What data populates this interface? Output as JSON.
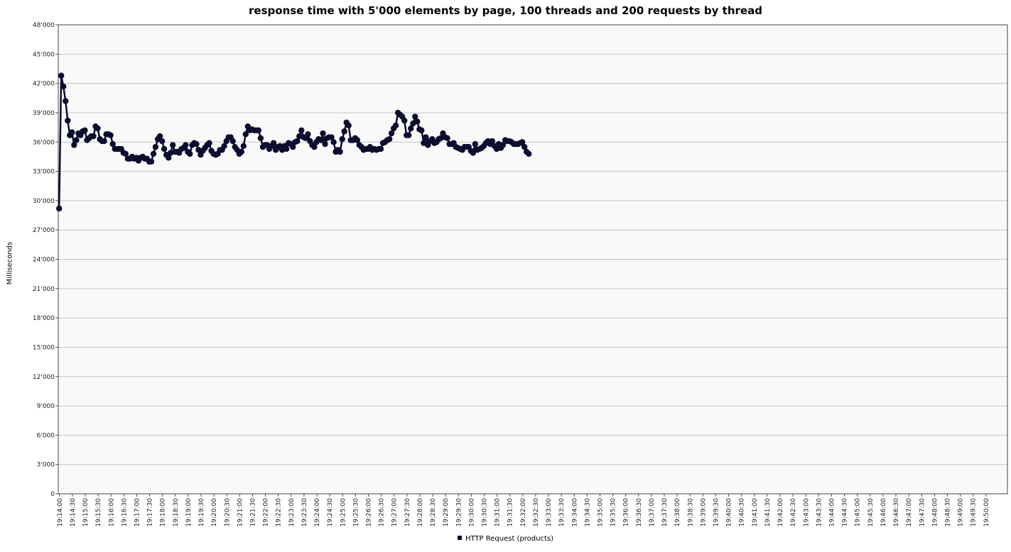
{
  "chart_data": {
    "type": "line",
    "title": "response time with 5'000 elements by page, 100 threads and 200 requests by thread",
    "xlabel": "",
    "ylabel": "Milliseconds",
    "ylim": [
      0,
      48000
    ],
    "y_ticks": [
      "0",
      "3'000",
      "6'000",
      "9'000",
      "12'000",
      "15'000",
      "18'000",
      "21'000",
      "24'000",
      "27'000",
      "30'000",
      "33'000",
      "36'000",
      "39'000",
      "42'000",
      "45'000",
      "48'000"
    ],
    "x_ticks": [
      "19:14:00",
      "19:14:30",
      "19:15:00",
      "19:15:30",
      "19:16:00",
      "19:16:30",
      "19:17:00",
      "19:17:30",
      "19:18:00",
      "19:18:30",
      "19:19:00",
      "19:19:30",
      "19:20:00",
      "19:20:30",
      "19:21:00",
      "19:21:30",
      "19:22:00",
      "19:22:30",
      "19:23:00",
      "19:23:30",
      "19:24:00",
      "19:24:30",
      "19:25:00",
      "19:25:30",
      "19:26:00",
      "19:26:30",
      "19:27:00",
      "19:27:30",
      "19:28:00",
      "19:28:30",
      "19:29:00",
      "19:29:30",
      "19:30:00",
      "19:30:30",
      "19:31:00",
      "19:31:30",
      "19:32:00",
      "19:32:30",
      "19:33:00",
      "19:33:30",
      "19:34:00",
      "19:34:30",
      "19:35:00",
      "19:35:30",
      "19:36:00",
      "19:36:30",
      "19:37:00",
      "19:37:30",
      "19:38:00",
      "19:38:30",
      "19:39:00",
      "19:39:30",
      "19:40:00",
      "19:40:30",
      "19:41:00",
      "19:41:30",
      "19:42:00",
      "19:42:30",
      "19:43:00",
      "19:43:30",
      "19:44:00",
      "19:44:30",
      "19:45:00",
      "19:45:30",
      "19:46:00",
      "19:46:30",
      "19:47:00",
      "19:47:30",
      "19:48:00",
      "19:48:30",
      "19:49:00",
      "19:49:30",
      "19:50:00"
    ],
    "x_range": [
      "19:13:57",
      "19:50:50"
    ],
    "grid": true,
    "legend_position": "bottom-center",
    "series": [
      {
        "name": "HTTP Request (products)",
        "color": "#0c0c2e",
        "x_start": "19:13:59",
        "x_step_seconds": 5,
        "values": [
          29200,
          42800,
          41700,
          40200,
          38200,
          36700,
          37000,
          35700,
          36200,
          36900,
          36700,
          37100,
          37200,
          36200,
          36400,
          36600,
          36600,
          37600,
          37400,
          36300,
          36100,
          36100,
          36800,
          36800,
          36700,
          35800,
          35300,
          35300,
          35300,
          35300,
          34900,
          34800,
          34300,
          34300,
          34500,
          34300,
          34400,
          34100,
          34400,
          34500,
          34300,
          34300,
          34000,
          34000,
          34800,
          35500,
          36300,
          36600,
          36100,
          35300,
          34700,
          34400,
          34900,
          35700,
          35000,
          35000,
          34900,
          35300,
          35400,
          35700,
          35000,
          34800,
          35700,
          35900,
          35800,
          35200,
          34700,
          35100,
          35400,
          35700,
          35900,
          35100,
          34800,
          34700,
          34800,
          35200,
          35200,
          35600,
          36100,
          36500,
          36500,
          36100,
          35500,
          35200,
          34800,
          35000,
          35600,
          36800,
          37600,
          37200,
          37300,
          37200,
          37200,
          37200,
          36400,
          35500,
          35700,
          35700,
          35300,
          35600,
          35900,
          35200,
          35500,
          35600,
          35200,
          35600,
          35300,
          35900,
          35800,
          35500,
          36000,
          36100,
          36600,
          37200,
          36500,
          36400,
          36800,
          36100,
          35700,
          35500,
          36000,
          36300,
          36200,
          36900,
          35800,
          36400,
          36500,
          36500,
          36000,
          35000,
          35200,
          35000,
          36300,
          37100,
          38000,
          37700,
          36200,
          36200,
          36400,
          36200,
          35700,
          35500,
          35200,
          35300,
          35300,
          35500,
          35200,
          35300,
          35200,
          35300,
          35300,
          35900,
          36000,
          36200,
          36300,
          36900,
          37400,
          37700,
          39000,
          38800,
          38600,
          38200,
          36700,
          36700,
          37400,
          37900,
          38600,
          38100,
          37300,
          37200,
          35900,
          36500,
          35700,
          36100,
          36300,
          35900,
          36000,
          36300,
          36400,
          36900,
          36500,
          36400,
          35800,
          35800,
          35900,
          35500,
          35400,
          35300,
          35200,
          35500,
          35500,
          35500,
          35100,
          34900,
          35800,
          35200,
          35300,
          35400,
          35600,
          35900,
          36100,
          35800,
          36100,
          35600,
          35300,
          35800,
          35400,
          35700,
          36200,
          36100,
          36100,
          36000,
          35800,
          35800,
          35800,
          35900,
          36000,
          35500,
          35000,
          34800
        ]
      }
    ]
  }
}
